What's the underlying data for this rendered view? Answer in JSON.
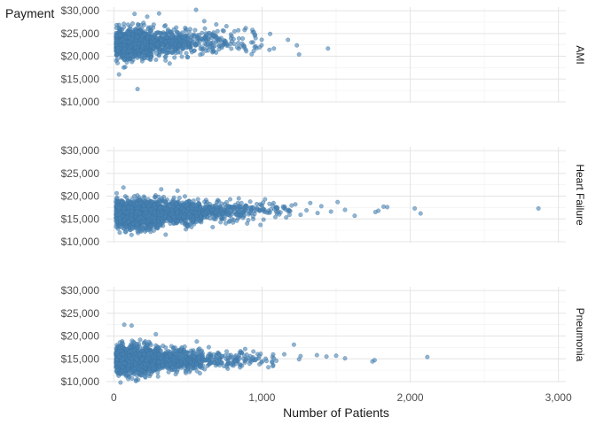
{
  "chart_data": {
    "type": "scatter",
    "title": "",
    "xlabel": "Number of Patients",
    "ylabel": "Payment",
    "xlim": [
      -50,
      3050
    ],
    "ylim": [
      9800,
      30800
    ],
    "x_ticks": [
      0,
      1000,
      2000,
      3000
    ],
    "x_tick_labels": [
      "0",
      "1,000",
      "2,000",
      "3,000"
    ],
    "x_minor_ticks": [
      500,
      1500,
      2500
    ],
    "y_ticks": [
      10000,
      15000,
      20000,
      25000,
      30000
    ],
    "y_tick_labels": [
      "$10,000",
      "$15,000",
      "$20,000",
      "$25,000",
      "$30,000"
    ],
    "y_minor_ticks": [
      12500,
      17500,
      22500,
      27500
    ],
    "grid": true,
    "point_color": "#4682B4",
    "point_opacity": 0.6,
    "facets": [
      {
        "name": "AMI",
        "points": [
          [
            35,
            16000
          ],
          [
            160,
            12800
          ],
          [
            555,
            30200
          ],
          [
            140,
            29300
          ],
          [
            305,
            29400
          ],
          [
            225,
            28700
          ],
          [
            610,
            27700
          ],
          [
            760,
            26600
          ],
          [
            890,
            26200
          ],
          [
            790,
            24800
          ],
          [
            1055,
            24900
          ],
          [
            1175,
            23600
          ],
          [
            1235,
            22400
          ],
          [
            1445,
            21700
          ],
          [
            1250,
            20400
          ],
          [
            1050,
            21400
          ],
          [
            950,
            22000
          ],
          [
            880,
            21900
          ],
          [
            690,
            20800
          ],
          [
            620,
            21200
          ],
          [
            840,
            25700
          ],
          [
            1080,
            21700
          ]
        ],
        "clusters": [
          {
            "x_range": [
              15,
              250
            ],
            "y_mean": 22800,
            "y_sd": 1600,
            "n": 1000
          },
          {
            "x_range": [
              250,
              500
            ],
            "y_mean": 23000,
            "y_sd": 1400,
            "n": 320
          },
          {
            "x_range": [
              500,
              750
            ],
            "y_mean": 23200,
            "y_sd": 1300,
            "n": 120
          },
          {
            "x_range": [
              750,
              1000
            ],
            "y_mean": 23100,
            "y_sd": 1200,
            "n": 40
          }
        ]
      },
      {
        "name": "Heart Failure",
        "points": [
          [
            2865,
            17300
          ],
          [
            2070,
            16200
          ],
          [
            2030,
            17300
          ],
          [
            1845,
            17600
          ],
          [
            1820,
            17700
          ],
          [
            1785,
            16800
          ],
          [
            1765,
            16500
          ],
          [
            1625,
            15700
          ],
          [
            1560,
            17000
          ],
          [
            1510,
            18700
          ],
          [
            1465,
            16600
          ],
          [
            1400,
            17800
          ],
          [
            1375,
            16300
          ],
          [
            1325,
            18500
          ],
          [
            1300,
            16900
          ],
          [
            1260,
            15900
          ],
          [
            1225,
            18200
          ],
          [
            1190,
            16700
          ],
          [
            1145,
            17400
          ],
          [
            1100,
            16200
          ],
          [
            1050,
            18300
          ],
          [
            1020,
            19300
          ],
          [
            1000,
            17900
          ],
          [
            960,
            16900
          ],
          [
            920,
            18800
          ],
          [
            880,
            15900
          ],
          [
            860,
            17700
          ],
          [
            320,
            21500
          ],
          [
            430,
            21200
          ],
          [
            65,
            21900
          ],
          [
            40,
            12000
          ],
          [
            160,
            12300
          ],
          [
            720,
            14300
          ],
          [
            900,
            14000
          ],
          [
            950,
            16100
          ]
        ],
        "clusters": [
          {
            "x_range": [
              15,
              300
            ],
            "y_mean": 16200,
            "y_sd": 1450,
            "n": 1300
          },
          {
            "x_range": [
              300,
              600
            ],
            "y_mean": 16400,
            "y_sd": 1250,
            "n": 550
          },
          {
            "x_range": [
              600,
              900
            ],
            "y_mean": 16700,
            "y_sd": 1100,
            "n": 200
          },
          {
            "x_range": [
              900,
              1200
            ],
            "y_mean": 16800,
            "y_sd": 1000,
            "n": 60
          }
        ]
      },
      {
        "name": "Pneumonia",
        "points": [
          [
            2115,
            15400
          ],
          [
            1760,
            14700
          ],
          [
            1745,
            14400
          ],
          [
            1560,
            15100
          ],
          [
            1500,
            15700
          ],
          [
            1435,
            15500
          ],
          [
            1370,
            15800
          ],
          [
            1260,
            15600
          ],
          [
            1250,
            14900
          ],
          [
            1215,
            18100
          ],
          [
            1150,
            16000
          ],
          [
            1080,
            15100
          ],
          [
            1030,
            14500
          ],
          [
            990,
            16100
          ],
          [
            960,
            15000
          ],
          [
            920,
            15600
          ],
          [
            890,
            14700
          ],
          [
            860,
            16400
          ],
          [
            820,
            14400
          ],
          [
            790,
            15800
          ],
          [
            560,
            18800
          ],
          [
            70,
            22500
          ],
          [
            120,
            22300
          ],
          [
            45,
            9800
          ]
        ],
        "clusters": [
          {
            "x_range": [
              15,
              300
            ],
            "y_mean": 14800,
            "y_sd": 1500,
            "n": 1300
          },
          {
            "x_range": [
              300,
              600
            ],
            "y_mean": 14800,
            "y_sd": 1150,
            "n": 420
          },
          {
            "x_range": [
              600,
              900
            ],
            "y_mean": 14800,
            "y_sd": 1000,
            "n": 110
          },
          {
            "x_range": [
              900,
              1100
            ],
            "y_mean": 14900,
            "y_sd": 900,
            "n": 25
          }
        ]
      }
    ]
  }
}
